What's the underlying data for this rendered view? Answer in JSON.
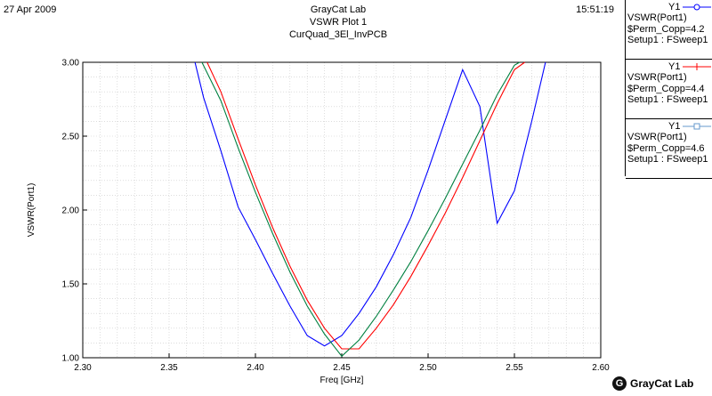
{
  "header": {
    "date": "27 Apr 2009",
    "time": "15:51:19",
    "title_lines": [
      "GrayCat Lab",
      "VSWR Plot 1",
      "CurQuad_3El_InvPCB"
    ]
  },
  "chart_data": {
    "type": "line",
    "xlabel": "Freq [GHz]",
    "ylabel": "VSWR(Port1)",
    "xlim": [
      2.3,
      2.6
    ],
    "ylim": [
      1.0,
      3.0
    ],
    "x_ticks": [
      "2.30",
      "2.35",
      "2.40",
      "2.45",
      "2.50",
      "2.55",
      "2.60"
    ],
    "y_ticks": [
      "1.00",
      "1.50",
      "2.00",
      "2.50",
      "3.00"
    ],
    "grid": true,
    "series": [
      {
        "name": "$Perm_Copp=4.2",
        "color": "#0000ff",
        "x": [
          2.365,
          2.37,
          2.38,
          2.39,
          2.4,
          2.41,
          2.42,
          2.43,
          2.44,
          2.45,
          2.46,
          2.47,
          2.48,
          2.49,
          2.5,
          2.51,
          2.52,
          2.53,
          2.54,
          2.55,
          2.56,
          2.568
        ],
        "y": [
          3.0,
          2.76,
          2.4,
          2.02,
          1.8,
          1.57,
          1.35,
          1.15,
          1.08,
          1.15,
          1.3,
          1.48,
          1.7,
          1.95,
          2.27,
          2.61,
          2.95,
          2.7,
          1.91,
          2.13,
          2.6,
          3.0
        ]
      },
      {
        "name": "$Perm_Copp=4.4",
        "color": "#ff0000",
        "x": [
          2.372,
          2.38,
          2.39,
          2.4,
          2.41,
          2.42,
          2.43,
          2.44,
          2.45,
          2.455,
          2.46,
          2.47,
          2.48,
          2.49,
          2.5,
          2.51,
          2.52,
          2.53,
          2.54,
          2.55,
          2.556
        ],
        "y": [
          3.0,
          2.8,
          2.48,
          2.17,
          1.88,
          1.62,
          1.39,
          1.2,
          1.06,
          1.06,
          1.06,
          1.2,
          1.36,
          1.55,
          1.76,
          1.98,
          2.22,
          2.47,
          2.72,
          2.95,
          3.0
        ]
      },
      {
        "name": "$Perm_Copp=4.6",
        "color": "#008040",
        "x": [
          2.369,
          2.38,
          2.39,
          2.4,
          2.41,
          2.42,
          2.43,
          2.44,
          2.45,
          2.46,
          2.47,
          2.48,
          2.49,
          2.5,
          2.51,
          2.52,
          2.53,
          2.54,
          2.55,
          2.553
        ],
        "y": [
          3.0,
          2.74,
          2.42,
          2.12,
          1.84,
          1.58,
          1.35,
          1.16,
          1.01,
          1.12,
          1.28,
          1.46,
          1.65,
          1.86,
          2.08,
          2.31,
          2.54,
          2.78,
          2.98,
          3.0
        ]
      }
    ]
  },
  "legend": [
    {
      "y_tag": "Y1",
      "trace": "VSWR(Port1)",
      "param": "$Perm_Copp=4.2",
      "setup": "Setup1 : FSweep1",
      "color": "#0000ff",
      "marker": "circle"
    },
    {
      "y_tag": "Y1",
      "trace": "VSWR(Port1)",
      "param": "$Perm_Copp=4.4",
      "setup": "Setup1 : FSweep1",
      "color": "#ff0000",
      "marker": "cross"
    },
    {
      "y_tag": "Y1",
      "trace": "VSWR(Port1)",
      "param": "$Perm_Copp=4.6",
      "setup": "Setup1 : FSweep1",
      "color": "#008040",
      "marker": "square"
    }
  ],
  "logo": {
    "mark": "G",
    "text": "GrayCat Lab"
  }
}
